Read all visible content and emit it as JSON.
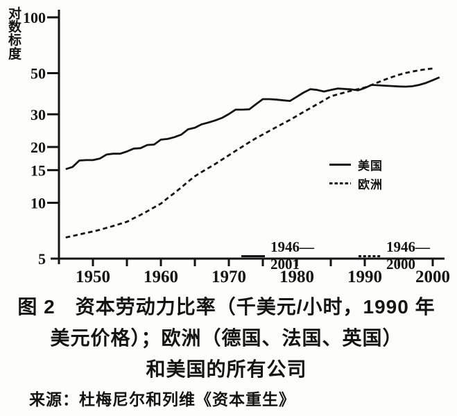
{
  "axis": {
    "ylabel": "对数标度"
  },
  "legend": {
    "us_label": "美国",
    "europe_label": "欧洲",
    "us_period": "1946—2001",
    "europe_period": "1946—2000"
  },
  "caption": {
    "line1": "图 2　资本劳动力比率（千美元/小时，1990 年",
    "line2": "美元价格）；欧洲（德国、法国、英国）",
    "line3": "和美国的所有公司"
  },
  "source": "来源：杜梅尼尔和列维《资本重生》",
  "colors": {
    "ink": "#141414",
    "paper": "#fdfdfb"
  },
  "chart_data": {
    "type": "line",
    "figure_label": "图 2",
    "title": "资本劳动力比率（千美元/小时，1990 年美元价格）；欧洲（德国、法国、英国）和美国的所有公司",
    "source": "杜梅尼尔和列维《资本重生》",
    "ylabel": "对数标度",
    "yscale": "log",
    "grid": false,
    "legend_position": "inside-right",
    "ylim": [
      5,
      110
    ],
    "xlim": [
      1945,
      2002.5
    ],
    "yticks": [
      100,
      50,
      30,
      20,
      15,
      10,
      5
    ],
    "xticks": [
      1950,
      1955,
      1960,
      1965,
      1970,
      1975,
      1980,
      1985,
      1990,
      1995,
      2000
    ],
    "xtick_labels": [
      "1950",
      "1960",
      "1970",
      "1980",
      "1990",
      "2000"
    ],
    "series": [
      {
        "key": "us",
        "name": "美国",
        "period": "1946—2001",
        "line_style": "solid",
        "color": "#141414",
        "x_start": 1946,
        "x_step": 1,
        "values": [
          15.2,
          15.6,
          16.9,
          17.0,
          17.0,
          17.3,
          18.2,
          18.4,
          18.4,
          18.9,
          19.6,
          19.7,
          20.5,
          20.6,
          21.9,
          22.1,
          22.6,
          23.3,
          24.9,
          25.4,
          26.5,
          27.1,
          27.8,
          28.7,
          30.1,
          31.8,
          31.8,
          31.9,
          34.0,
          36.2,
          36.2,
          36.0,
          35.7,
          35.4,
          37.3,
          39.3,
          41.0,
          40.6,
          39.8,
          40.6,
          41.3,
          41.1,
          40.9,
          40.4,
          41.6,
          43.2,
          43.0,
          42.8,
          42.6,
          42.4,
          42.3,
          42.5,
          43.2,
          44.3,
          45.8,
          47.5
        ]
      },
      {
        "key": "europe",
        "name": "欧洲",
        "period": "1946—2000",
        "line_style": "dashed",
        "color": "#141414",
        "x_start": 1946,
        "x_step": 1,
        "values": [
          6.5,
          6.62,
          6.75,
          6.88,
          7.0,
          7.15,
          7.32,
          7.5,
          7.7,
          7.9,
          8.25,
          8.6,
          9.0,
          9.45,
          9.9,
          10.6,
          11.3,
          12.1,
          13.0,
          13.9,
          14.65,
          15.4,
          16.2,
          17.1,
          18.05,
          19.05,
          20.1,
          21.2,
          22.3,
          23.35,
          24.45,
          25.6,
          26.8,
          28.0,
          29.4,
          30.9,
          32.4,
          34.0,
          35.7,
          37.5,
          38.4,
          39.3,
          40.2,
          41.0,
          41.8,
          43.2,
          44.7,
          46.2,
          47.6,
          49.0,
          50.1,
          51.0,
          51.8,
          52.5,
          53.0
        ]
      }
    ]
  }
}
